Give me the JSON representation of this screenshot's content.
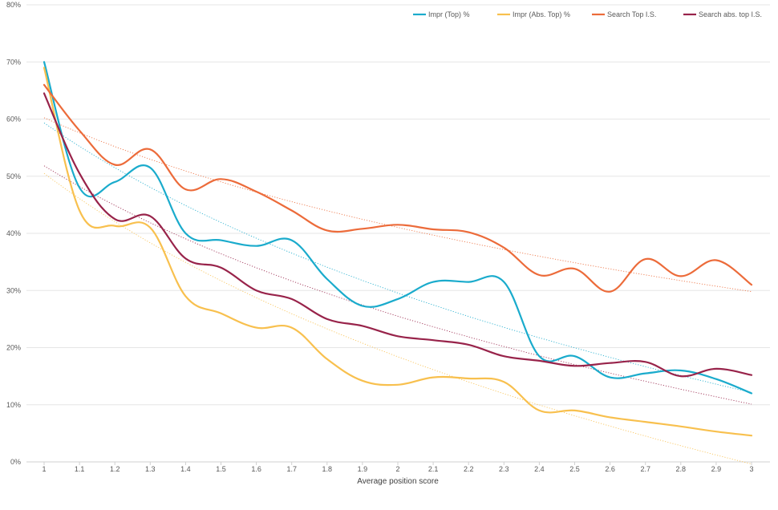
{
  "chart_data": {
    "type": "line",
    "title": "",
    "xlabel": "Average position score",
    "ylabel": "",
    "x": [
      1,
      1.1,
      1.2,
      1.3,
      1.4,
      1.5,
      1.6,
      1.7,
      1.8,
      1.9,
      2,
      2.1,
      2.2,
      2.3,
      2.4,
      2.5,
      2.6,
      2.7,
      2.8,
      2.9,
      3
    ],
    "x_tick_labels": [
      "1",
      "1.1",
      "1.2",
      "1.3",
      "1.4",
      "1.5",
      "1.6",
      "1.7",
      "1.8",
      "1.9",
      "2",
      "2.1",
      "2.2",
      "2.3",
      "2.4",
      "2.5",
      "2.6",
      "2.7",
      "2.8",
      "2.9",
      "3"
    ],
    "ylim": [
      0,
      80
    ],
    "y_ticks": [
      0,
      10,
      20,
      30,
      40,
      50,
      60,
      70,
      80
    ],
    "y_tick_labels": [
      "0%",
      "10%",
      "20%",
      "30%",
      "40%",
      "50%",
      "60%",
      "70%",
      "80%"
    ],
    "grid": true,
    "legend_position": "top-right",
    "trendlines": "logarithmic, dotted, one per series",
    "series": [
      {
        "name": "Impr (Top) %",
        "color": "#1aabcc",
        "values": [
          70.0,
          48.0,
          49.0,
          51.5,
          40.0,
          38.8,
          37.8,
          38.8,
          32.0,
          27.3,
          28.5,
          31.5,
          31.5,
          31.5,
          18.5,
          18.5,
          14.8,
          15.5,
          16.0,
          14.5,
          12.0
        ]
      },
      {
        "name": "Impr (Abs. Top) %",
        "color": "#f8c04e",
        "values": [
          69.0,
          44.0,
          41.3,
          41.0,
          29.0,
          26.0,
          23.5,
          23.5,
          18.0,
          14.2,
          13.5,
          14.8,
          14.6,
          14.0,
          9.0,
          9.0,
          7.8,
          7.0,
          6.2,
          5.3,
          4.6
        ]
      },
      {
        "name": "Search Top I.S.",
        "color": "#ec6b3a",
        "values": [
          66.0,
          58.0,
          52.0,
          54.7,
          47.7,
          49.5,
          47.3,
          44.0,
          40.5,
          40.8,
          41.5,
          40.7,
          40.2,
          37.5,
          32.7,
          33.8,
          29.8,
          35.5,
          32.5,
          35.3,
          31.0
        ]
      },
      {
        "name": "Search abs. top I.S.",
        "color": "#98234a",
        "values": [
          64.5,
          50.5,
          42.5,
          43.0,
          35.6,
          34.0,
          30.0,
          28.5,
          25.0,
          23.8,
          22.0,
          21.3,
          20.5,
          18.5,
          17.7,
          16.8,
          17.3,
          17.5,
          15.0,
          16.3,
          15.2
        ]
      }
    ]
  }
}
